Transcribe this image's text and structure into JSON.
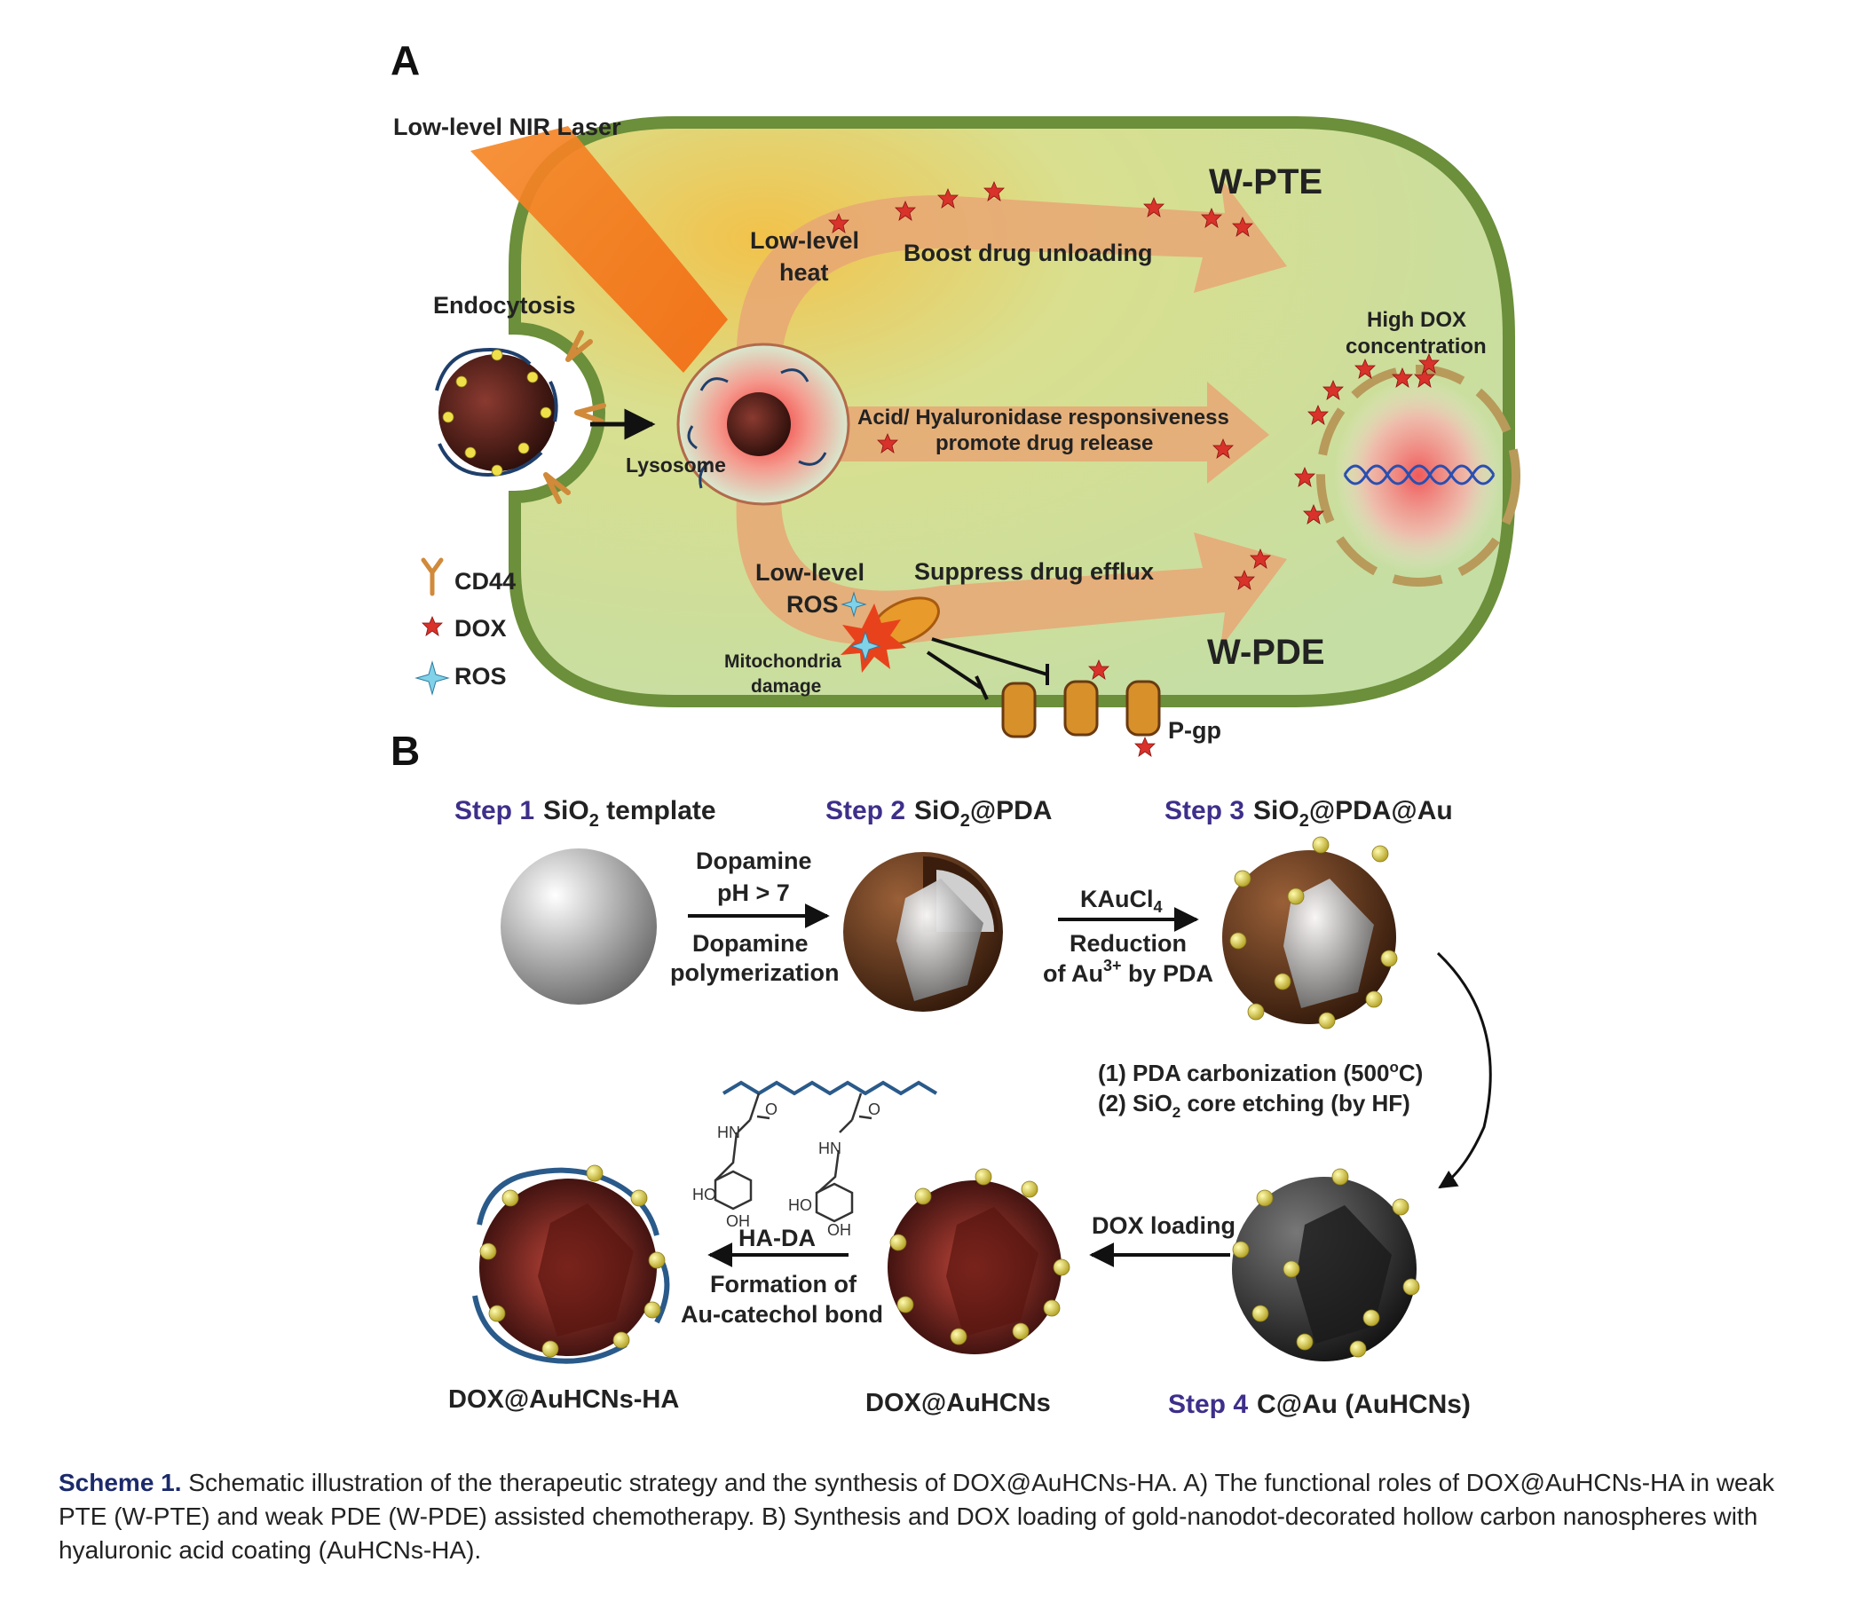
{
  "panel_a": {
    "label": "A",
    "laser": "Low-level NIR Laser",
    "w_pte": "W-PTE",
    "w_pde": "W-PDE",
    "endocytosis": "Endocytosis",
    "lysosome": "Lysosome",
    "low_level_heat_1": "Low-level",
    "low_level_heat_2": "heat",
    "boost": "Boost drug unloading",
    "acid_1": "Acid/ Hyaluronidase responsiveness",
    "acid_2": "promote drug release",
    "high_dox_1": "High DOX",
    "high_dox_2": "concentration",
    "ros_1": "Low-level",
    "ros_2": "ROS",
    "suppress": "Suppress drug efflux",
    "mito_1": "Mitochondria",
    "mito_2": "damage",
    "pgp": "P-gp",
    "legend": {
      "cd44": "CD44",
      "dox": "DOX",
      "ros": "ROS"
    }
  },
  "panel_b": {
    "label": "B",
    "step1_prefix": "Step 1",
    "step1_name": "SiO",
    "step1_sub": "2",
    "step1_rest": " template",
    "step2_prefix": "Step 2",
    "step2_name": "SiO",
    "step2_sub": "2",
    "step2_rest": "@PDA",
    "step3_prefix": "Step 3",
    "step3_name": "SiO",
    "step3_sub": "2",
    "step3_rest": "@PDA@Au",
    "step4_prefix": "Step 4",
    "step4_name": "C@Au (AuHCNs)",
    "arrow1_top1": "Dopamine",
    "arrow1_top2": "pH > 7",
    "arrow1_bot1": "Dopamine",
    "arrow1_bot2": "polymerization",
    "arrow2_top": "KAuCl",
    "arrow2_top_sub": "4",
    "arrow2_bot1": "Reduction",
    "arrow2_bot2": "of Au",
    "arrow2_bot2_sup": "3+",
    "arrow2_bot2_rest": " by PDA",
    "arrow3_l1": "(1) PDA carbonization (500",
    "arrow3_l1_sup": "o",
    "arrow3_l1_rest": "C)",
    "arrow3_l2a": "(2) SiO",
    "arrow3_l2_sub": "2",
    "arrow3_l2b": " core etching (by HF)",
    "arrow4": "DOX loading",
    "arrow5_top": "HA-DA",
    "arrow5_bot1": "Formation of",
    "arrow5_bot2": "Au-catechol bond",
    "product_dox": "DOX@AuHCNs",
    "product_final": "DOX@AuHCNs-HA",
    "chem": {
      "hn": "HN",
      "o": "O",
      "ho": "HO",
      "oh": "OH"
    }
  },
  "caption": {
    "label": "Scheme 1.",
    "text": " Schematic illustration of the therapeutic strategy and the synthesis of DOX@AuHCNs-HA. A) The functional roles of DOX@AuHCNs-HA in weak PTE (W-PTE) and weak PDE (W-PDE) assisted chemotherapy. B) Synthesis and DOX loading of gold-nanodot-decorated hollow carbon nanospheres with hyaluronic acid coating (AuHCNs-HA)."
  },
  "colors": {
    "cell_fill": "#cfe3a6",
    "cell_border": "#6b8f3a",
    "arrow": "#e8a774",
    "laser": "#f47a20",
    "dox": "#d8322a",
    "step_label": "#3d2f8a",
    "gold": "#e0d24a"
  }
}
